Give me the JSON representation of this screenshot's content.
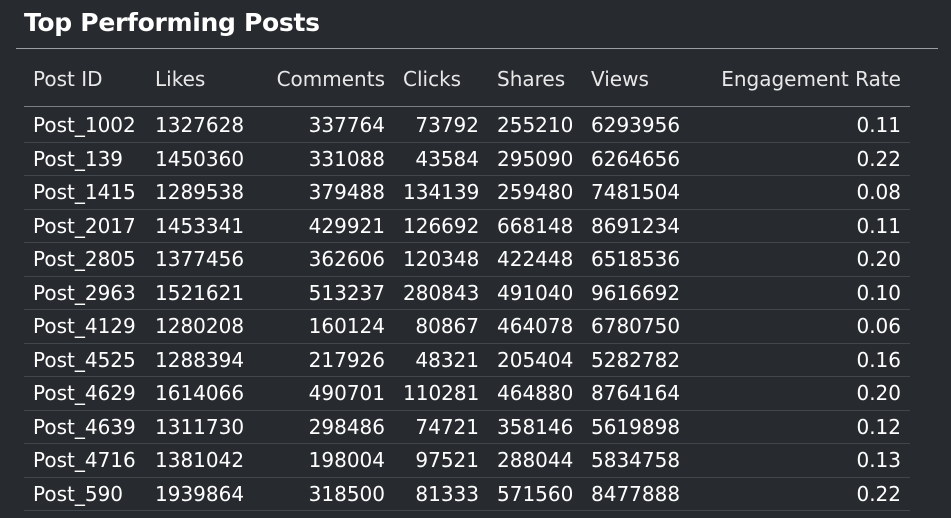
{
  "title": "Top Performing Posts",
  "table": {
    "columns": [
      "Post ID",
      "Likes",
      "Comments",
      "Clicks",
      "Shares",
      "Views",
      "Engagement Rate"
    ],
    "rows": [
      [
        "Post_1002",
        "1327628",
        "337764",
        "73792",
        "255210",
        "6293956",
        "0.11"
      ],
      [
        "Post_139",
        "1450360",
        "331088",
        "43584",
        "295090",
        "6264656",
        "0.22"
      ],
      [
        "Post_1415",
        "1289538",
        "379488",
        "134139",
        "259480",
        "7481504",
        "0.08"
      ],
      [
        "Post_2017",
        "1453341",
        "429921",
        "126692",
        "668148",
        "8691234",
        "0.11"
      ],
      [
        "Post_2805",
        "1377456",
        "362606",
        "120348",
        "422448",
        "6518536",
        "0.20"
      ],
      [
        "Post_2963",
        "1521621",
        "513237",
        "280843",
        "491040",
        "9616692",
        "0.10"
      ],
      [
        "Post_4129",
        "1280208",
        "160124",
        "80867",
        "464078",
        "6780750",
        "0.06"
      ],
      [
        "Post_4525",
        "1288394",
        "217926",
        "48321",
        "205404",
        "5282782",
        "0.16"
      ],
      [
        "Post_4629",
        "1614066",
        "490701",
        "110281",
        "464880",
        "8764164",
        "0.20"
      ],
      [
        "Post_4639",
        "1311730",
        "298486",
        "74721",
        "358146",
        "5619898",
        "0.12"
      ],
      [
        "Post_4716",
        "1381042",
        "198004",
        "97521",
        "288044",
        "5834758",
        "0.13"
      ],
      [
        "Post_590",
        "1939864",
        "318500",
        "81333",
        "571560",
        "8477888",
        "0.22"
      ]
    ]
  },
  "colors": {
    "background": "#272b30",
    "text": "#ffffff",
    "rule": "#9aa0a6",
    "row_divider": "#41464c"
  }
}
